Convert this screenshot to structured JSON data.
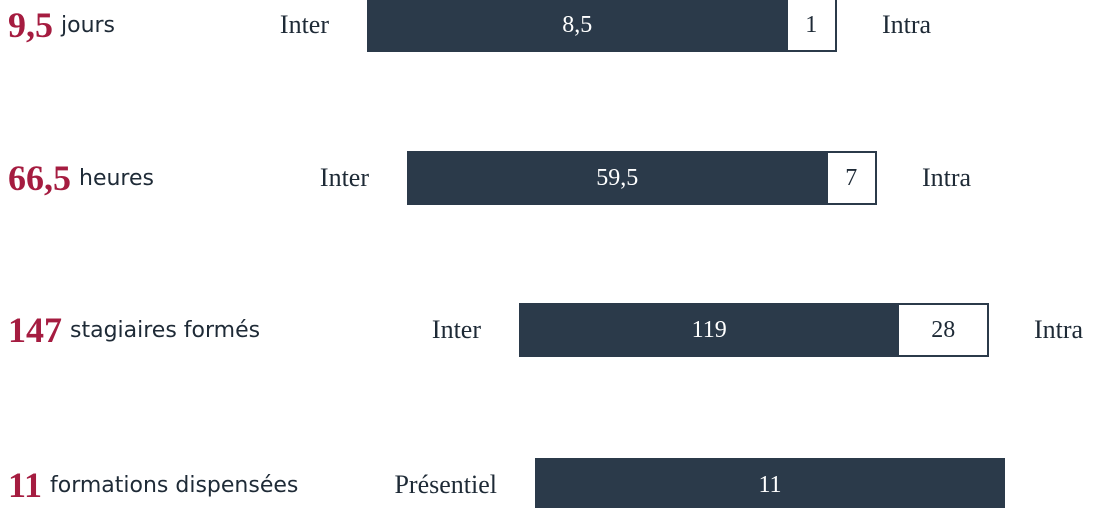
{
  "chart_data": {
    "type": "stacked-bar-rows",
    "rows": [
      {
        "headline": "9,5",
        "unit": "jours",
        "left_label": "Inter",
        "right_label": "Intra",
        "values": [
          8.5,
          1
        ],
        "value_labels": [
          "8,5",
          "1"
        ]
      },
      {
        "headline": "66,5",
        "unit": "heures",
        "left_label": "Inter",
        "right_label": "Intra",
        "values": [
          59.5,
          7
        ],
        "value_labels": [
          "59,5",
          "7"
        ]
      },
      {
        "headline": "147",
        "unit": "stagiaires formés",
        "left_label": "Inter",
        "right_label": "Intra",
        "values": [
          119,
          28
        ]
      },
      {
        "headline": "11",
        "unit": "formations dispensées",
        "left_label": "Présentiel",
        "values": [
          11
        ]
      }
    ]
  }
}
